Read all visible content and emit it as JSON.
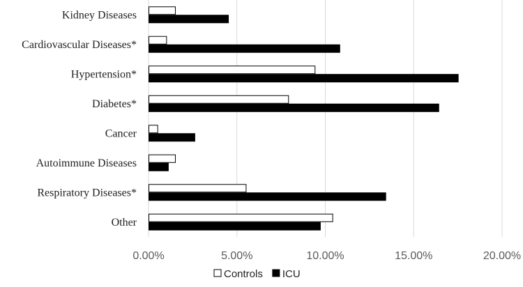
{
  "chart_data": {
    "type": "bar",
    "orientation": "horizontal",
    "categories": [
      "Kidney Diseases",
      "Cardiovascular Diseases*",
      "Hypertension*",
      "Diabetes*",
      "Cancer",
      "Autoimmune Diseases",
      "Respiratory Diseases*",
      "Other"
    ],
    "series": [
      {
        "name": "Controls",
        "values": [
          1.5,
          1.0,
          9.4,
          7.9,
          0.5,
          1.5,
          5.5,
          10.4
        ],
        "color": "#ffffff",
        "stroke": "#000000"
      },
      {
        "name": "ICU",
        "values": [
          4.5,
          10.8,
          17.5,
          16.4,
          2.6,
          1.1,
          13.4,
          9.7
        ],
        "color": "#000000",
        "stroke": "#000000"
      }
    ],
    "xlim": [
      0,
      20
    ],
    "xticks": [
      0,
      5,
      10,
      15,
      20
    ],
    "tick_labels": [
      "0.00%",
      "5.00%",
      "10.00%",
      "15.00%",
      "20.00%"
    ],
    "grid": "vertical",
    "legend_position": "bottom"
  }
}
